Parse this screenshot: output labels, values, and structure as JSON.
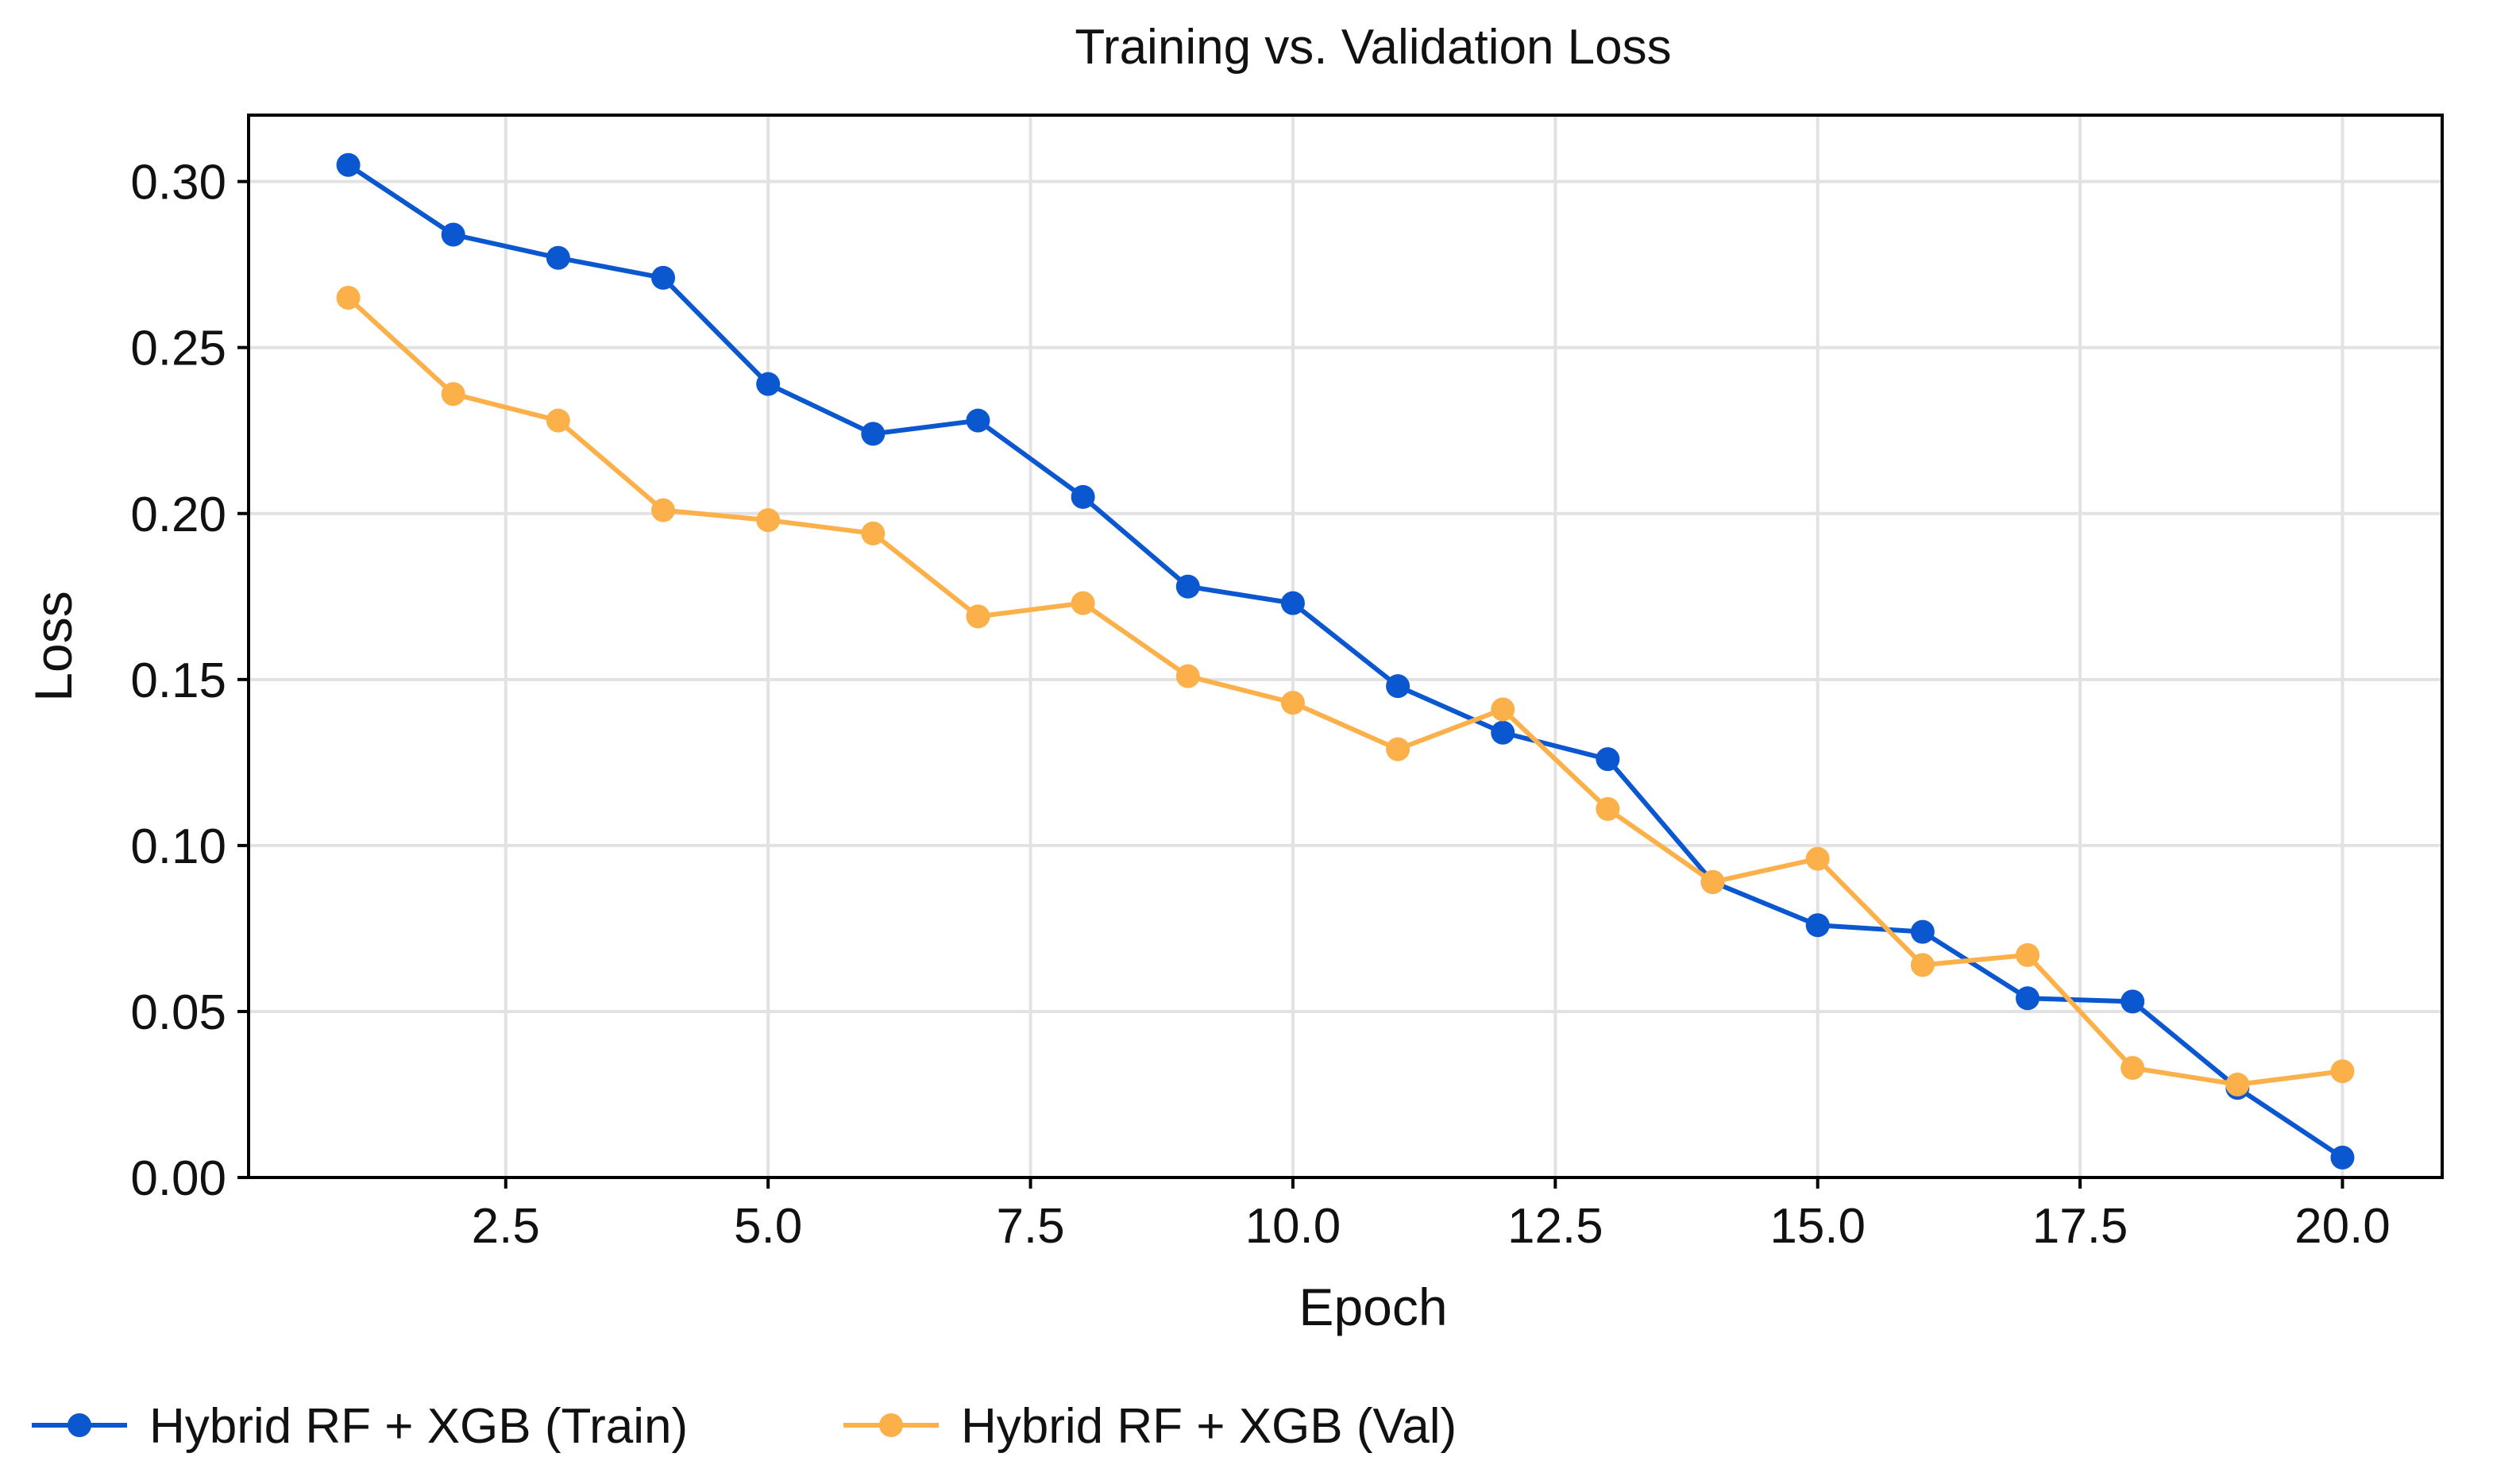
{
  "chart_data": {
    "type": "line",
    "title": "Training vs. Validation Loss",
    "xlabel": "Epoch",
    "ylabel": "Loss",
    "xlim": [
      0.05,
      20.95
    ],
    "ylim": [
      0.0,
      0.32
    ],
    "xticks": [
      2.5,
      5.0,
      7.5,
      10.0,
      12.5,
      15.0,
      17.5,
      20.0
    ],
    "xtick_labels": [
      "2.5",
      "5.0",
      "7.5",
      "10.0",
      "12.5",
      "15.0",
      "17.5",
      "20.0"
    ],
    "yticks": [
      0.0,
      0.05,
      0.1,
      0.15,
      0.2,
      0.25,
      0.3
    ],
    "ytick_labels": [
      "0.00",
      "0.05",
      "0.10",
      "0.15",
      "0.20",
      "0.25",
      "0.30"
    ],
    "grid": true,
    "legend_position": "bottom-left",
    "x": [
      1,
      2,
      3,
      4,
      5,
      6,
      7,
      8,
      9,
      10,
      11,
      12,
      13,
      14,
      15,
      16,
      17,
      18,
      19,
      20
    ],
    "series": [
      {
        "name": "Hybrid RF + XGB (Train)",
        "color": "#0a57cf",
        "values": [
          0.305,
          0.284,
          0.277,
          0.271,
          0.239,
          0.224,
          0.228,
          0.205,
          0.178,
          0.173,
          0.148,
          0.134,
          0.126,
          0.089,
          0.076,
          0.074,
          0.054,
          0.053,
          0.027,
          0.006
        ]
      },
      {
        "name": "Hybrid RF + XGB (Val)",
        "color": "#fcb04a",
        "values": [
          0.265,
          0.236,
          0.228,
          0.201,
          0.198,
          0.194,
          0.169,
          0.173,
          0.151,
          0.143,
          0.129,
          0.141,
          0.111,
          0.089,
          0.096,
          0.064,
          0.067,
          0.033,
          0.028,
          0.032
        ]
      }
    ]
  }
}
